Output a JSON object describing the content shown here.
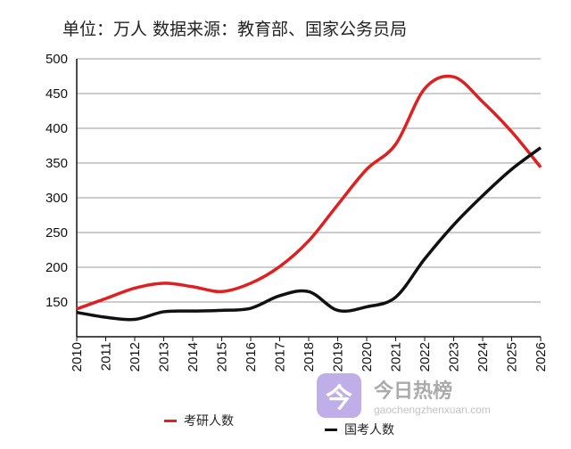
{
  "chart_data": {
    "type": "line",
    "title": "单位：万人  数据来源：教育部、国家公务员局",
    "x": [
      "2010",
      "2011",
      "2012",
      "2013",
      "2014",
      "2015",
      "2016",
      "2017",
      "2018",
      "2019",
      "2020",
      "2021",
      "2022",
      "2023",
      "2024",
      "2025",
      "2026"
    ],
    "yticks": [
      500,
      450,
      400,
      350,
      300,
      250,
      200,
      150
    ],
    "ylim": [
      100,
      500
    ],
    "grid": true,
    "legend_position": "bottom",
    "series": [
      {
        "name": "考研人数",
        "color": "#e02020",
        "values": [
          140,
          155,
          170,
          177,
          172,
          165,
          177,
          201,
          238,
          290,
          341,
          377,
          457,
          474,
          438,
          395,
          344
        ]
      },
      {
        "name": "国考人数",
        "color": "#111111",
        "values": [
          135,
          128,
          125,
          136,
          137,
          138,
          141,
          159,
          165,
          138,
          143,
          157,
          212,
          261,
          303,
          341,
          372
        ]
      }
    ]
  },
  "watermark": {
    "logo_char": "今",
    "name": "今日热榜",
    "site": "gaochengzhenxuan.com"
  }
}
